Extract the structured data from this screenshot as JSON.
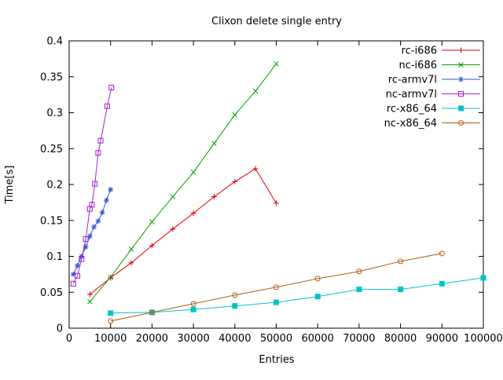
{
  "chart_data": {
    "type": "line",
    "title": "Clixon delete single entry",
    "xlabel": "Entries",
    "ylabel": "Time[s]",
    "xlim": [
      0,
      100000
    ],
    "ylim": [
      0,
      0.4
    ],
    "xticks": [
      0,
      10000,
      20000,
      30000,
      40000,
      50000,
      60000,
      70000,
      80000,
      90000,
      100000
    ],
    "yticks": [
      0,
      0.05,
      0.1,
      0.15,
      0.2,
      0.25,
      0.3,
      0.35,
      0.4
    ],
    "grid": false,
    "legend_position": "top-right-inside",
    "background_color": "#ffffff",
    "axis_color": "#000000",
    "series": [
      {
        "name": "rc-i686",
        "color": "#dc0000",
        "marker": "plus",
        "points": [
          [
            5000,
            0.047
          ],
          [
            10000,
            0.07
          ],
          [
            15000,
            0.091
          ],
          [
            20000,
            0.115
          ],
          [
            25000,
            0.138
          ],
          [
            30000,
            0.16
          ],
          [
            35000,
            0.183
          ],
          [
            40000,
            0.204
          ],
          [
            45000,
            0.222
          ],
          [
            50000,
            0.174
          ]
        ]
      },
      {
        "name": "nc-i686",
        "color": "#00a000",
        "marker": "cross",
        "points": [
          [
            5000,
            0.037
          ],
          [
            10000,
            0.071
          ],
          [
            15000,
            0.11
          ],
          [
            20000,
            0.148
          ],
          [
            25000,
            0.183
          ],
          [
            30000,
            0.217
          ],
          [
            35000,
            0.257
          ],
          [
            40000,
            0.297
          ],
          [
            45000,
            0.33
          ],
          [
            50000,
            0.368
          ]
        ]
      },
      {
        "name": "rc-armv7l",
        "color": "#3457d5",
        "marker": "asterisk",
        "points": [
          [
            1000,
            0.075
          ],
          [
            2000,
            0.087
          ],
          [
            3000,
            0.1
          ],
          [
            4000,
            0.113
          ],
          [
            5000,
            0.128
          ],
          [
            6000,
            0.141
          ],
          [
            7000,
            0.149
          ],
          [
            8000,
            0.161
          ],
          [
            9000,
            0.178
          ],
          [
            10000,
            0.193
          ]
        ]
      },
      {
        "name": "nc-armv7l",
        "color": "#a020d0",
        "marker": "square-open",
        "points": [
          [
            1000,
            0.062
          ],
          [
            2000,
            0.073
          ],
          [
            3000,
            0.096
          ],
          [
            4000,
            0.124
          ],
          [
            5000,
            0.166
          ],
          [
            5500,
            0.172
          ],
          [
            6200,
            0.201
          ],
          [
            7000,
            0.244
          ],
          [
            7600,
            0.261
          ],
          [
            9200,
            0.309
          ],
          [
            10200,
            0.335
          ]
        ]
      },
      {
        "name": "rc-x86_64",
        "color": "#00c4c4",
        "marker": "square-filled",
        "points": [
          [
            10000,
            0.021
          ],
          [
            20000,
            0.022
          ],
          [
            30000,
            0.026
          ],
          [
            40000,
            0.031
          ],
          [
            50000,
            0.036
          ],
          [
            60000,
            0.044
          ],
          [
            70000,
            0.054
          ],
          [
            80000,
            0.054
          ],
          [
            90000,
            0.062
          ],
          [
            100000,
            0.07
          ]
        ]
      },
      {
        "name": "nc-x86_64",
        "color": "#b55b10",
        "marker": "circle-open",
        "points": [
          [
            10000,
            0.01
          ],
          [
            20000,
            0.022
          ],
          [
            30000,
            0.034
          ],
          [
            40000,
            0.046
          ],
          [
            50000,
            0.057
          ],
          [
            60000,
            0.069
          ],
          [
            70000,
            0.079
          ],
          [
            80000,
            0.093
          ],
          [
            90000,
            0.104
          ]
        ]
      }
    ]
  }
}
